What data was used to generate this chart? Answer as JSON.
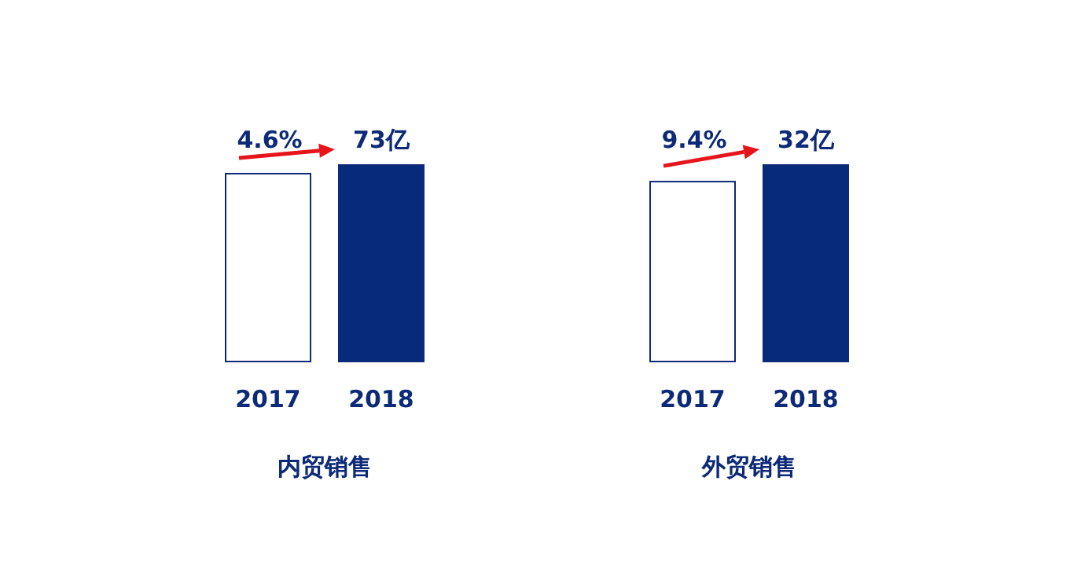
{
  "chart_data": [
    {
      "type": "bar",
      "xlabel": "内贸销售",
      "categories": [
        "2017",
        "2018"
      ],
      "values": [
        69.8,
        73
      ],
      "colors": [
        "#ffffff",
        "#072a7a"
      ],
      "value_labels": [
        null,
        "73亿"
      ],
      "annotations": [
        "4.6%"
      ]
    },
    {
      "type": "bar",
      "xlabel": "外贸销售",
      "categories": [
        "2017",
        "2018"
      ],
      "values": [
        29.3,
        32
      ],
      "colors": [
        "#ffffff",
        "#072a7a"
      ],
      "value_labels": [
        null,
        "32亿"
      ],
      "annotations": [
        "9.4%"
      ]
    }
  ]
}
